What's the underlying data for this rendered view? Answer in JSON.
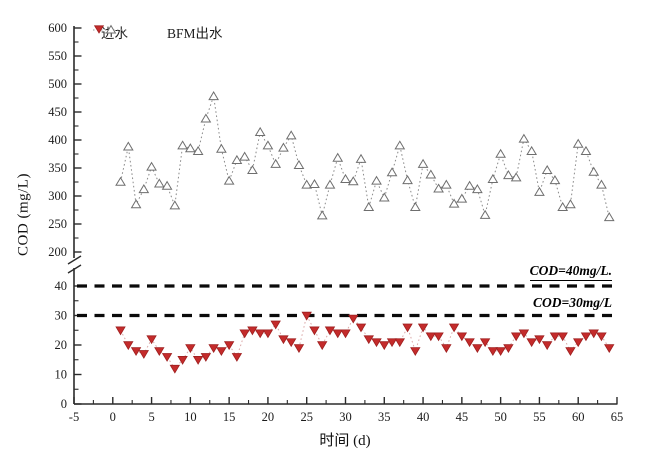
{
  "chart_data": {
    "type": "scatter",
    "title": "",
    "xlabel": "时间 (d)",
    "ylabel": "COD (mg/L)",
    "x_axis": {
      "min": -5,
      "max": 65,
      "major_ticks": [
        -5,
        0,
        5,
        10,
        15,
        20,
        25,
        30,
        35,
        40,
        45,
        50,
        55,
        60,
        65
      ],
      "minor_tick_step": 2.5
    },
    "y_axis": {
      "broken": true,
      "lower_section": {
        "min": 0,
        "max": 45,
        "major_ticks": [
          0,
          10,
          20,
          30,
          40
        ],
        "minor_tick_step": 5
      },
      "upper_section": {
        "min": 200,
        "max": 605,
        "major_ticks": [
          200,
          250,
          300,
          350,
          400,
          450,
          500,
          550,
          600
        ],
        "minor_tick_step": 25
      }
    },
    "reference_lines": [
      {
        "value": 40,
        "label": "COD=40mg/L.",
        "style": "dashed",
        "color": "#0a0a0a"
      },
      {
        "value": 30,
        "label": "COD=30mg/L",
        "style": "dashed",
        "color": "#0a0a0a"
      }
    ],
    "legend_position": "top-left-inside",
    "grid": false,
    "series": [
      {
        "name": "进水",
        "marker": "open-triangle-up",
        "marker_color": "#6e6e6e",
        "line_style": "dotted",
        "line_color": "#8a8a8a",
        "days": [
          1,
          2,
          3,
          4,
          5,
          6,
          7,
          8,
          9,
          10,
          11,
          12,
          13,
          14,
          15,
          16,
          17,
          18,
          19,
          20,
          21,
          22,
          23,
          24,
          25,
          26,
          27,
          28,
          29,
          30,
          31,
          32,
          33,
          34,
          35,
          36,
          37,
          38,
          39,
          40,
          41,
          42,
          43,
          44,
          45,
          46,
          47,
          48,
          49,
          50,
          51,
          52,
          53,
          54,
          55,
          56,
          57,
          58,
          59,
          60,
          61,
          62,
          63,
          64
        ],
        "values": [
          325,
          388,
          285,
          312,
          352,
          322,
          318,
          283,
          390,
          385,
          380,
          438,
          478,
          384,
          327,
          364,
          370,
          346,
          414,
          390,
          357,
          386,
          408,
          355,
          320,
          321,
          265,
          320,
          368,
          330,
          326,
          366,
          280,
          327,
          297,
          342,
          390,
          328,
          280,
          357,
          338,
          313,
          320,
          286,
          295,
          318,
          312,
          266,
          330,
          375,
          337,
          333,
          402,
          380,
          307,
          346,
          328,
          280,
          285,
          393,
          380,
          343,
          320,
          262
        ]
      },
      {
        "name": "BFM出水",
        "marker": "filled-triangle-down",
        "marker_color": "#c42b2b",
        "marker_edge_color": "#9e1f1f",
        "line_style": "dotted",
        "line_color": "#dba8a8",
        "days": [
          1,
          2,
          3,
          4,
          5,
          6,
          7,
          8,
          9,
          10,
          11,
          12,
          13,
          14,
          15,
          16,
          17,
          18,
          19,
          20,
          21,
          22,
          23,
          24,
          25,
          26,
          27,
          28,
          29,
          30,
          31,
          32,
          33,
          34,
          35,
          36,
          37,
          38,
          39,
          40,
          41,
          42,
          43,
          44,
          45,
          46,
          47,
          48,
          49,
          50,
          51,
          52,
          53,
          54,
          55,
          56,
          57,
          58,
          59,
          60,
          61,
          62,
          63,
          64
        ],
        "values": [
          25,
          20,
          18,
          17,
          22,
          18,
          16,
          12,
          15,
          19,
          15,
          16,
          19,
          18,
          20,
          16,
          24,
          25,
          24,
          24,
          27,
          22,
          21,
          19,
          30,
          25,
          20,
          25,
          24,
          24,
          29,
          26,
          22,
          21,
          20,
          21,
          21,
          26,
          18,
          26,
          23,
          23,
          19,
          26,
          23,
          21,
          19,
          21,
          18,
          18,
          19,
          23,
          24,
          21,
          22,
          20,
          23,
          23,
          18,
          21,
          23,
          24,
          23,
          19
        ]
      }
    ]
  }
}
